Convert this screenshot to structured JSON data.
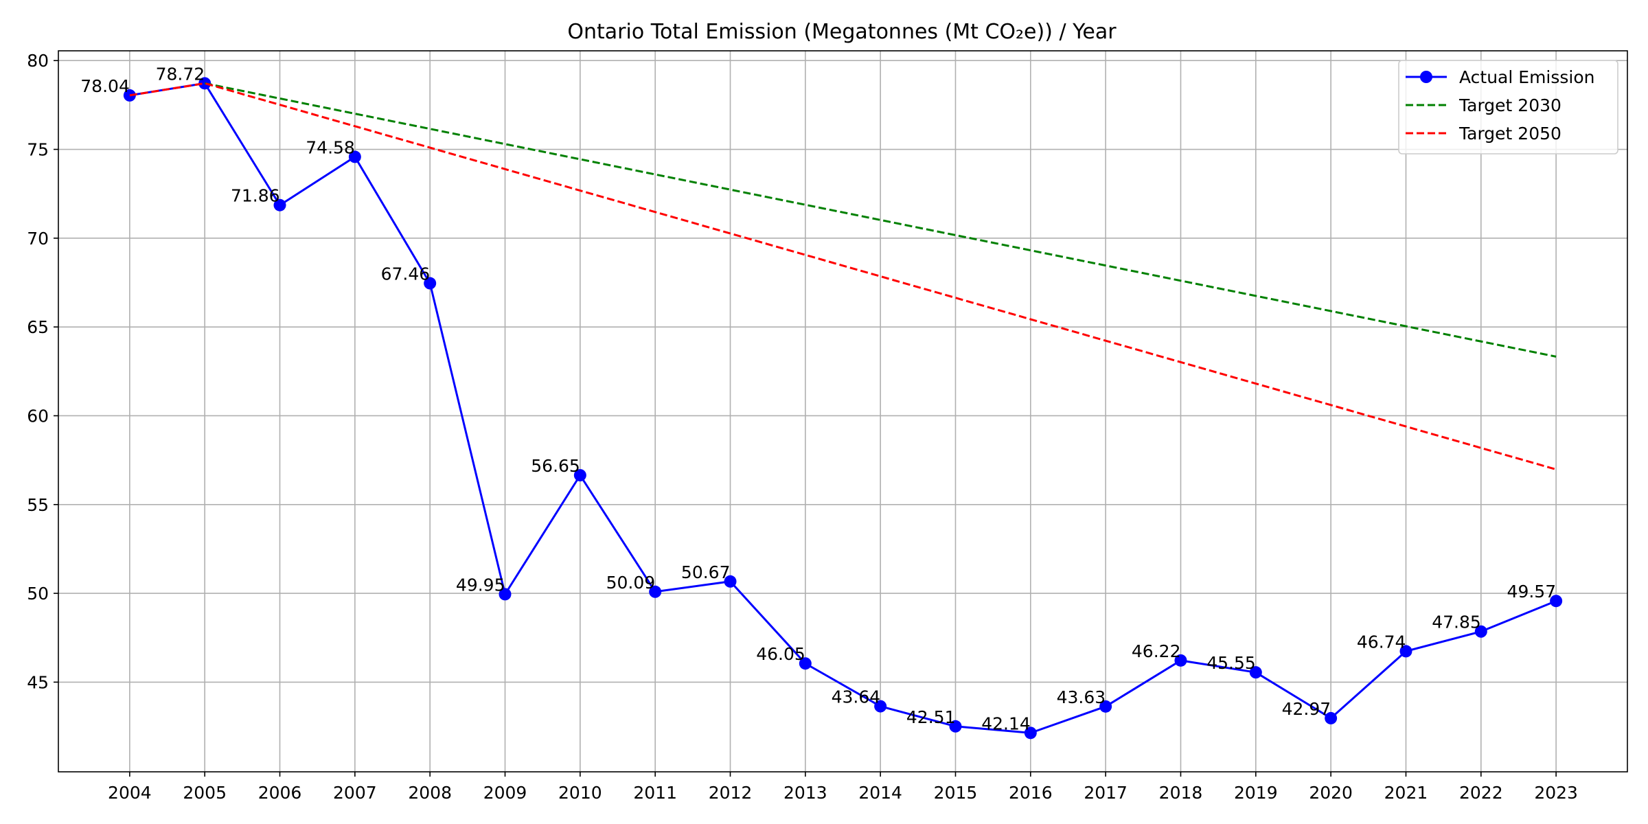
{
  "chart_data": {
    "type": "line",
    "title": "Ontario Total Emission (Megatonnes (Mt CO₂e)) / Year",
    "xlabel": "",
    "ylabel": "",
    "x": [
      "2004",
      "2005",
      "2006",
      "2007",
      "2008",
      "2009",
      "2010",
      "2011",
      "2012",
      "2013",
      "2014",
      "2015",
      "2016",
      "2017",
      "2018",
      "2019",
      "2020",
      "2021",
      "2022",
      "2023"
    ],
    "xlim": [
      2003.05,
      2023.95
    ],
    "ylim": [
      39.95,
      80.55
    ],
    "yticks": [
      45,
      50,
      55,
      60,
      65,
      70,
      75,
      80
    ],
    "grid": true,
    "legend_position": "top-right",
    "series": [
      {
        "name": "Actual Emission",
        "style": "solid-with-markers",
        "color": "#0000ff",
        "x": [
          2004,
          2005,
          2006,
          2007,
          2008,
          2009,
          2010,
          2011,
          2012,
          2013,
          2014,
          2015,
          2016,
          2017,
          2018,
          2019,
          2020,
          2021,
          2022,
          2023
        ],
        "values": [
          78.04,
          78.72,
          71.86,
          74.58,
          67.46,
          49.95,
          56.65,
          50.09,
          50.67,
          46.05,
          43.64,
          42.51,
          42.14,
          43.63,
          46.22,
          45.55,
          42.97,
          46.74,
          47.85,
          49.57
        ],
        "labels": [
          "78.04",
          "78.72",
          "71.86",
          "74.58",
          "67.46",
          "49.95",
          "56.65",
          "50.09",
          "50.67",
          "46.05",
          "43.64",
          "42.51",
          "42.14",
          "43.63",
          "46.22",
          "45.55",
          "42.97",
          "46.74",
          "47.85",
          "49.57"
        ]
      },
      {
        "name": "Target 2030",
        "style": "dashed",
        "color": "#008000",
        "x": [
          2005,
          2023
        ],
        "values": [
          78.72,
          63.33
        ]
      },
      {
        "name": "Target 2050",
        "style": "dashed",
        "color": "#ff0000",
        "x": [
          2004,
          2005,
          2023
        ],
        "values": [
          78.04,
          78.72,
          56.98
        ]
      }
    ]
  }
}
